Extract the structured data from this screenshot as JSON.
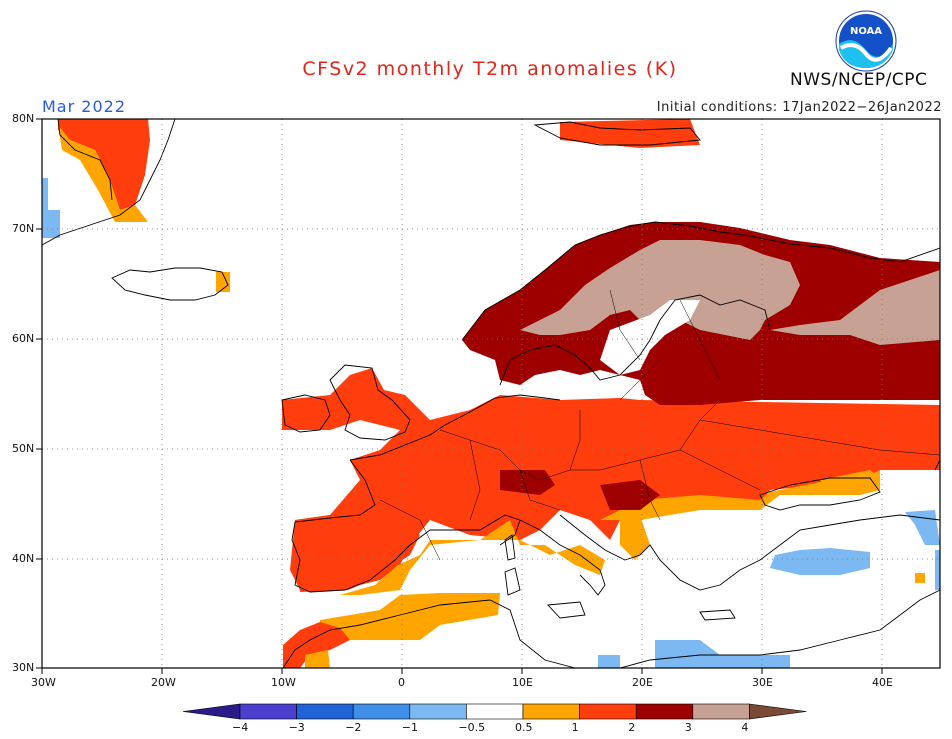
{
  "title": "CFSv2 monthly T2m anomalies (K)",
  "valid": "Mar 2022",
  "initial_conditions": "Initial conditions: 17Jan2022−26Jan2022",
  "agency": "NWS/NCEP/CPC",
  "logo_text": "NOAA",
  "lat_labels": [
    "80N",
    "70N",
    "60N",
    "50N",
    "40N",
    "30N"
  ],
  "lon_labels": [
    "30W",
    "20W",
    "10W",
    "0",
    "10E",
    "20E",
    "30E",
    "40E"
  ],
  "colorbar": {
    "labels": [
      "−4",
      "−3",
      "−2",
      "−1",
      "−0.5",
      "0.5",
      "1",
      "2",
      "3",
      "4"
    ],
    "colors": [
      "#2a1a8a",
      "#4a3fcf",
      "#1f63d6",
      "#3f8ee8",
      "#7cb8f2",
      "#ffffff",
      "#ffa500",
      "#ff3d0d",
      "#9e0000",
      "#c8a195",
      "#7a4a36"
    ]
  },
  "colors": {
    "title": "#e0261b",
    "valid": "#2a5bd7",
    "warm_05_1": "#ffa500",
    "warm_1_2": "#ff3d0d",
    "warm_2_3": "#9e0000",
    "warm_3_4": "#c8a195",
    "cool_05_1": "#7cb8f2"
  }
}
